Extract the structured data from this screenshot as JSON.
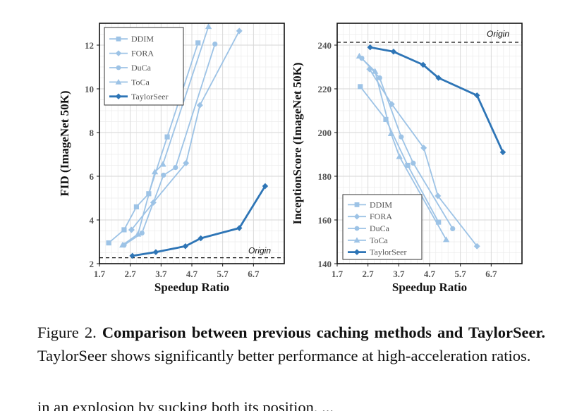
{
  "chart_data": [
    {
      "type": "line",
      "xlabel": "Speedup Ratio",
      "ylabel": "FID  (ImageNet 50K)",
      "xlim": [
        1.7,
        7.7
      ],
      "ylim": [
        2,
        13
      ],
      "x_ticks": [
        "1.7",
        "2.7",
        "3.7",
        "4.7",
        "5.7",
        "6.7"
      ],
      "y_ticks": [
        "2",
        "4",
        "6",
        "8",
        "10",
        "12"
      ],
      "grid": true,
      "legend_position": "top-left",
      "reference_line": {
        "y": 2.27,
        "label": "Origin"
      },
      "series": [
        {
          "name": "DDIM",
          "marker": "square",
          "color": "#9dc3e6",
          "x": [
            2.0,
            2.5,
            2.9,
            3.3,
            3.9,
            4.9
          ],
          "y": [
            2.95,
            3.55,
            4.6,
            5.2,
            7.8,
            12.1
          ]
        },
        {
          "name": "FORA",
          "marker": "diamond",
          "color": "#9dc3e6",
          "x": [
            2.74,
            3.45,
            4.51,
            4.96,
            6.24
          ],
          "y": [
            3.55,
            4.8,
            6.6,
            9.25,
            12.65
          ]
        },
        {
          "name": "DuCa",
          "marker": "circle",
          "color": "#9dc3e6",
          "x": [
            2.5,
            3.08,
            3.78,
            4.17,
            5.45
          ],
          "y": [
            2.85,
            3.4,
            6.05,
            6.4,
            12.05
          ]
        },
        {
          "name": "ToCa",
          "marker": "triangle",
          "color": "#9dc3e6",
          "x": [
            2.45,
            2.95,
            3.5,
            3.76,
            5.24
          ],
          "y": [
            2.85,
            3.35,
            6.2,
            6.55,
            12.85
          ]
        },
        {
          "name": "TaylorSeer",
          "marker": "diamond",
          "color": "#2e75b6",
          "x": [
            2.77,
            3.53,
            4.49,
            4.99,
            6.24,
            7.08
          ],
          "y": [
            2.36,
            2.53,
            2.8,
            3.16,
            3.63,
            5.55
          ]
        }
      ]
    },
    {
      "type": "line",
      "xlabel": "Speedup Ratio",
      "ylabel": "InceptionScore  (ImageNet 50K)",
      "xlim": [
        1.7,
        7.7
      ],
      "ylim": [
        140,
        250
      ],
      "x_ticks": [
        "1.7",
        "2.7",
        "3.7",
        "4.7",
        "5.7",
        "6.7"
      ],
      "y_ticks": [
        "140",
        "160",
        "180",
        "200",
        "220",
        "240"
      ],
      "grid": true,
      "legend_position": "bottom-left",
      "reference_line": {
        "y": 241.3,
        "label": "Origin"
      },
      "series": [
        {
          "name": "DDIM",
          "marker": "square",
          "color": "#9dc3e6",
          "x": [
            2.45,
            3.28,
            3.99,
            4.99
          ],
          "y": [
            221,
            206,
            185,
            159
          ]
        },
        {
          "name": "FORA",
          "marker": "diamond",
          "color": "#9dc3e6",
          "x": [
            2.75,
            3.47,
            4.51,
            4.97,
            6.24
          ],
          "y": [
            229,
            213,
            193,
            171,
            148
          ]
        },
        {
          "name": "DuCa",
          "marker": "circle",
          "color": "#9dc3e6",
          "x": [
            2.5,
            3.08,
            3.78,
            4.17,
            5.45
          ],
          "y": [
            234,
            225,
            198,
            186,
            156
          ]
        },
        {
          "name": "ToCa",
          "marker": "triangle",
          "color": "#9dc3e6",
          "x": [
            2.42,
            2.93,
            3.45,
            3.72,
            5.24
          ],
          "y": [
            235,
            228,
            199.5,
            189,
            151
          ]
        },
        {
          "name": "TaylorSeer",
          "marker": "diamond",
          "color": "#2e75b6",
          "x": [
            2.77,
            3.53,
            4.49,
            4.99,
            6.24,
            7.08
          ],
          "y": [
            239,
            237,
            231,
            225,
            217,
            191
          ]
        }
      ]
    }
  ],
  "caption": {
    "prefix": "Figure 2. ",
    "bold": "Comparison between previous caching methods and TaylorSeer.",
    "rest": " TaylorSeer shows significantly better performance at high-acceleration ratios."
  },
  "partial_line": "in an explosion by sucking both its position, ..."
}
